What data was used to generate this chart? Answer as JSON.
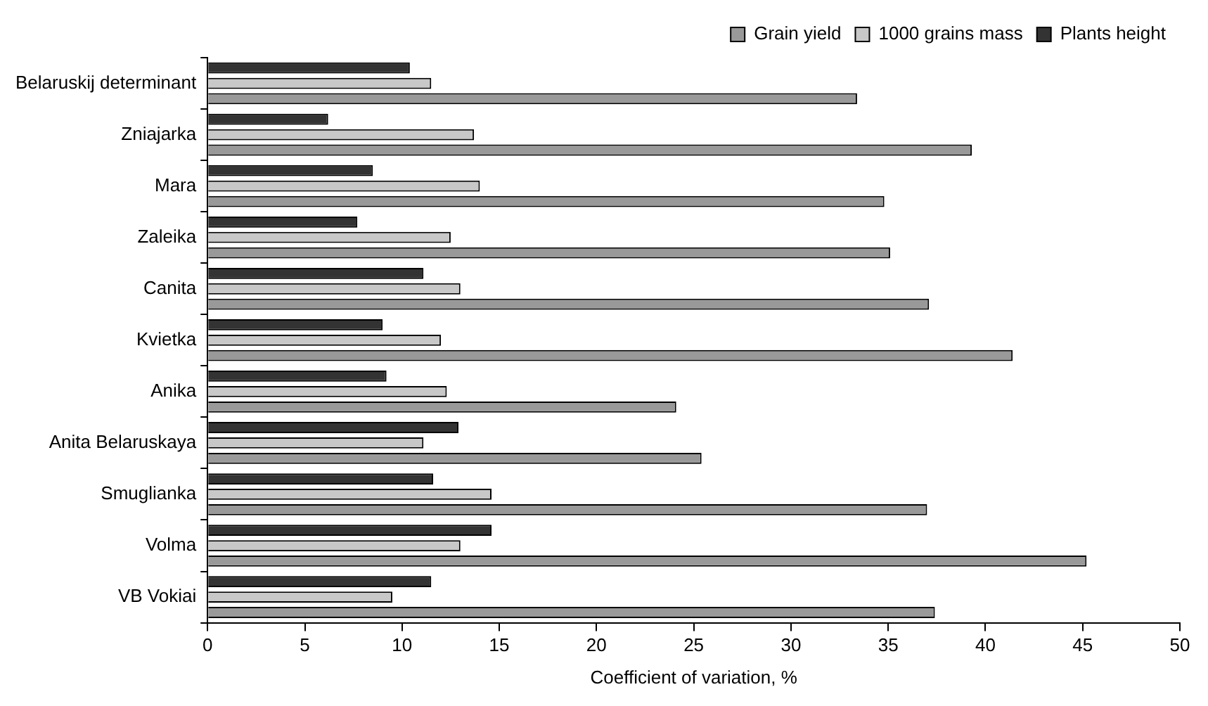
{
  "chart_data": {
    "type": "bar",
    "orientation": "horizontal",
    "xlabel": "Coefficient of variation, %",
    "categories": [
      "Belaruskij determinant",
      "Zniajarka",
      "Mara",
      "Zaleika",
      "Canita",
      "Kvietka",
      "Anika",
      "Anita Belaruskaya",
      "Smuglianka",
      "Volma",
      "VB Vokiai"
    ],
    "series": [
      {
        "name": "Grain yield",
        "color": "#999999",
        "values": [
          33.4,
          39.3,
          34.8,
          35.1,
          37.1,
          41.4,
          24.1,
          25.4,
          37.0,
          45.2,
          37.4
        ]
      },
      {
        "name": "1000 grains mass",
        "color": "#c8c8c8",
        "values": [
          11.5,
          13.7,
          14.0,
          12.5,
          13.0,
          12.0,
          12.3,
          11.1,
          14.6,
          13.0,
          9.5
        ]
      },
      {
        "name": "Plants height",
        "color": "#333333",
        "values": [
          10.4,
          6.2,
          8.5,
          7.7,
          11.1,
          9.0,
          9.2,
          12.9,
          11.6,
          14.6,
          11.5
        ]
      }
    ],
    "xlim": [
      0,
      50
    ],
    "xticks": [
      0,
      5,
      10,
      15,
      20,
      25,
      30,
      35,
      40,
      45,
      50
    ],
    "grid": false,
    "legend": "top right"
  }
}
